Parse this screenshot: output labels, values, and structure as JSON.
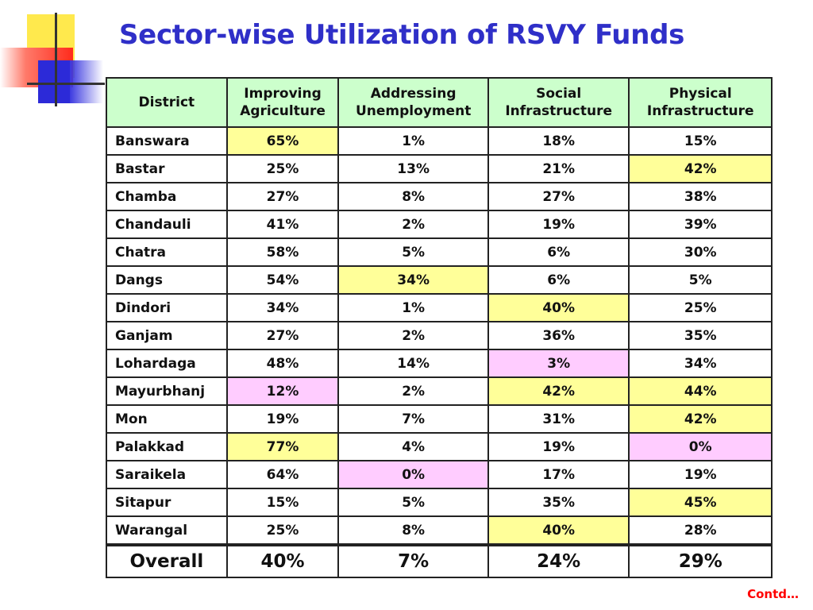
{
  "slide": {
    "title": "Sector-wise Utilization of RSVY Funds",
    "footer": "Contd…"
  },
  "table": {
    "headers": [
      [
        "District"
      ],
      [
        "Improving",
        "Agriculture"
      ],
      [
        "Addressing",
        "Unemployment"
      ],
      [
        "Social",
        "Infrastructure"
      ],
      [
        "Physical",
        "Infrastructure"
      ]
    ],
    "rows": [
      {
        "district": "Banswara",
        "values": [
          "65%",
          "1%",
          "18%",
          "15%"
        ],
        "highlight": [
          "yellow",
          null,
          null,
          null
        ]
      },
      {
        "district": "Bastar",
        "values": [
          "25%",
          "13%",
          "21%",
          "42%"
        ],
        "highlight": [
          null,
          null,
          null,
          "yellow"
        ]
      },
      {
        "district": "Chamba",
        "values": [
          "27%",
          "8%",
          "27%",
          "38%"
        ],
        "highlight": [
          null,
          null,
          null,
          null
        ]
      },
      {
        "district": "Chandauli",
        "values": [
          "41%",
          "2%",
          "19%",
          "39%"
        ],
        "highlight": [
          null,
          null,
          null,
          null
        ]
      },
      {
        "district": "Chatra",
        "values": [
          "58%",
          "5%",
          "6%",
          "30%"
        ],
        "highlight": [
          null,
          null,
          null,
          null
        ]
      },
      {
        "district": "Dangs",
        "values": [
          "54%",
          "34%",
          "6%",
          "5%"
        ],
        "highlight": [
          null,
          "yellow",
          null,
          null
        ]
      },
      {
        "district": "Dindori",
        "values": [
          "34%",
          "1%",
          "40%",
          "25%"
        ],
        "highlight": [
          null,
          null,
          "yellow",
          null
        ]
      },
      {
        "district": "Ganjam",
        "values": [
          "27%",
          "2%",
          "36%",
          "35%"
        ],
        "highlight": [
          null,
          null,
          null,
          null
        ]
      },
      {
        "district": "Lohardaga",
        "values": [
          "48%",
          "14%",
          "3%",
          "34%"
        ],
        "highlight": [
          null,
          null,
          "pink",
          null
        ]
      },
      {
        "district": "Mayurbhanj",
        "values": [
          "12%",
          "2%",
          "42%",
          "44%"
        ],
        "highlight": [
          "pink",
          null,
          "yellow",
          "yellow"
        ]
      },
      {
        "district": "Mon",
        "values": [
          "19%",
          "7%",
          "31%",
          "42%"
        ],
        "highlight": [
          null,
          null,
          null,
          "yellow"
        ]
      },
      {
        "district": "Palakkad",
        "values": [
          "77%",
          "4%",
          "19%",
          "0%"
        ],
        "highlight": [
          "yellow",
          null,
          null,
          "pink"
        ]
      },
      {
        "district": "Saraikela",
        "values": [
          "64%",
          "0%",
          "17%",
          "19%"
        ],
        "highlight": [
          null,
          "pink",
          null,
          null
        ]
      },
      {
        "district": "Sitapur",
        "values": [
          "15%",
          "5%",
          "35%",
          "45%"
        ],
        "highlight": [
          null,
          null,
          null,
          "yellow"
        ]
      },
      {
        "district": "Warangal",
        "values": [
          "25%",
          "8%",
          "40%",
          "28%"
        ],
        "highlight": [
          null,
          null,
          "yellow",
          null
        ]
      }
    ],
    "overall": {
      "district": "Overall",
      "values": [
        "40%",
        "7%",
        "24%",
        "29%"
      ]
    }
  },
  "colors": {
    "title": "#2f2fc8",
    "header_bg": "#ccffcc",
    "highlight_yellow": "#ffff99",
    "highlight_pink": "#ffccff",
    "footer": "#ff0000"
  },
  "icons": {
    "logo": "ppt-corner-decoration"
  }
}
